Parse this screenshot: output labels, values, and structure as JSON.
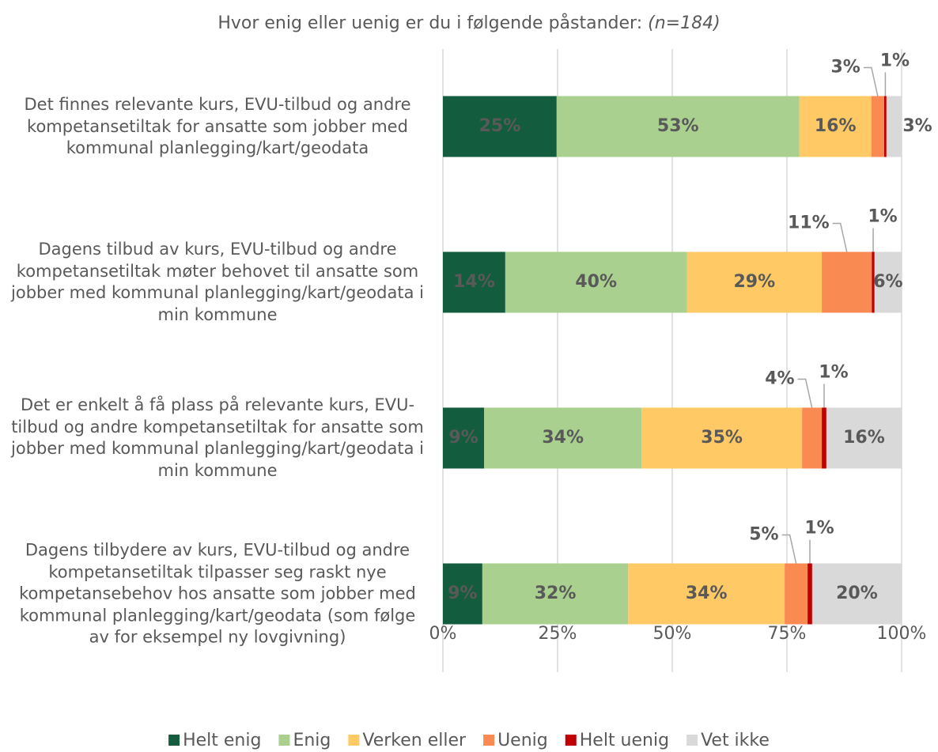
{
  "chart_data": {
    "type": "stacked-bar-horizontal",
    "title": "Hvor enig eller uenig er du i følgende påstander:",
    "subtitle": "(n=184)",
    "categories": [
      "Det finnes relevante kurs, EVU-tilbud og andre kompetansetiltak for ansatte som jobber med kommunal planlegging/kart/geodata",
      "Dagens tilbud av kurs, EVU-tilbud og andre kompetansetiltak møter behovet til ansatte som jobber med kommunal planlegging/kart/geodata i min kommune",
      "Det er enkelt å få plass på relevante kurs, EVU-tilbud og andre kompetansetiltak for ansatte som jobber med kommunal planlegging/kart/geodata i min kommune",
      "Dagens tilbydere av kurs, EVU-tilbud og andre kompetansetiltak tilpasser seg raskt nye kompetansebehov hos ansatte som jobber med kommunal planlegging/kart/geodata (som følge av for eksempel ny lovgivning)"
    ],
    "series": [
      {
        "name": "Helt enig",
        "color": "#145c3e",
        "values": [
          24.8,
          13.6,
          9.0,
          8.6
        ],
        "value_labels": [
          "25%",
          "14%",
          "9%",
          "9%"
        ]
      },
      {
        "name": "Enig",
        "color": "#a9d08e",
        "values": [
          52.9,
          39.6,
          34.3,
          31.8
        ],
        "value_labels": [
          "53%",
          "40%",
          "34%",
          "32%"
        ]
      },
      {
        "name": "Verken eller",
        "color": "#ffc966",
        "values": [
          15.7,
          29.4,
          35.0,
          34.1
        ],
        "value_labels": [
          "16%",
          "29%",
          "35%",
          "34%"
        ]
      },
      {
        "name": "Uenig",
        "color": "#f98a52",
        "values": [
          2.8,
          10.9,
          4.3,
          5.0
        ],
        "value_labels": [
          "3%",
          "11%",
          "4%",
          "5%"
        ]
      },
      {
        "name": "Helt uenig",
        "color": "#c00000",
        "values": [
          0.5,
          0.6,
          1.0,
          1.0
        ],
        "value_labels": [
          "1%",
          "1%",
          "1%",
          "1%"
        ]
      },
      {
        "name": "Vet ikke",
        "color": "#d9d9d9",
        "values": [
          3.3,
          5.9,
          16.4,
          19.5
        ],
        "value_labels": [
          "3%",
          "6%",
          "16%",
          "20%"
        ]
      }
    ],
    "xlim": [
      0,
      100
    ],
    "xticks": [
      {
        "value": 0,
        "label": "0%"
      },
      {
        "value": 25,
        "label": "25%"
      },
      {
        "value": 50,
        "label": "50%"
      },
      {
        "value": 75,
        "label": "75%"
      },
      {
        "value": 100,
        "label": "100%"
      }
    ],
    "grid": true,
    "legend": "bottom"
  }
}
